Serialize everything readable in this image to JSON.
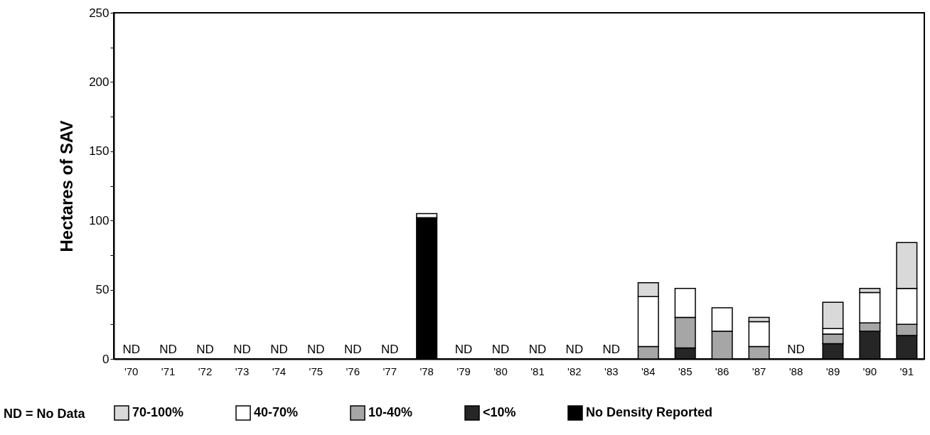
{
  "chart_data": {
    "type": "bar",
    "stacked": true,
    "ylabel": "Hectares of SAV",
    "categories": [
      "'70",
      "'71",
      "'72",
      "'73",
      "'74",
      "'75",
      "'76",
      "'77",
      "'78",
      "'79",
      "'80",
      "'81",
      "'82",
      "'83",
      "'84",
      "'85",
      "'86",
      "'87",
      "'88",
      "'89",
      "'90",
      "'91"
    ],
    "series": [
      {
        "name": "No Density Reported",
        "color": "#000000",
        "values": [
          null,
          null,
          null,
          null,
          null,
          null,
          null,
          null,
          102,
          null,
          null,
          null,
          null,
          null,
          null,
          null,
          null,
          null,
          null,
          null,
          null,
          null
        ]
      },
      {
        "name": "<10%",
        "color": "#262626",
        "values": [
          null,
          null,
          null,
          null,
          null,
          null,
          null,
          null,
          null,
          null,
          null,
          null,
          null,
          null,
          null,
          8,
          null,
          null,
          null,
          11,
          20,
          17
        ]
      },
      {
        "name": "10-40%",
        "color": "#a6a6a6",
        "values": [
          null,
          null,
          null,
          null,
          null,
          null,
          null,
          null,
          null,
          null,
          null,
          null,
          null,
          null,
          9,
          22,
          20,
          9,
          null,
          7,
          6,
          8
        ]
      },
      {
        "name": "40-70%",
        "color": "#ffffff",
        "values": [
          null,
          null,
          null,
          null,
          null,
          null,
          null,
          null,
          3,
          null,
          null,
          null,
          null,
          null,
          36,
          21,
          17,
          18,
          null,
          4,
          22,
          26
        ]
      },
      {
        "name": "70-100%",
        "color": "#d9d9d9",
        "values": [
          null,
          null,
          null,
          null,
          null,
          null,
          null,
          null,
          null,
          null,
          null,
          null,
          null,
          null,
          10,
          null,
          null,
          3,
          null,
          19,
          3,
          33
        ]
      }
    ],
    "ylim": [
      0,
      250
    ],
    "yticks": [
      0,
      {
        "value": 25,
        "label": null
      },
      50,
      {
        "value": 75,
        "label": null
      },
      100,
      {
        "value": 125,
        "label": null
      },
      150,
      {
        "value": 175,
        "label": null
      },
      200,
      {
        "value": 225,
        "label": null
      },
      250
    ],
    "grid": false,
    "legend": "bottom",
    "annotations": [
      "ND",
      "ND",
      "ND",
      "ND",
      "ND",
      "ND",
      "ND",
      "ND",
      "ND",
      "ND",
      "ND",
      "ND",
      "ND",
      "ND",
      "ND = No Data"
    ]
  }
}
